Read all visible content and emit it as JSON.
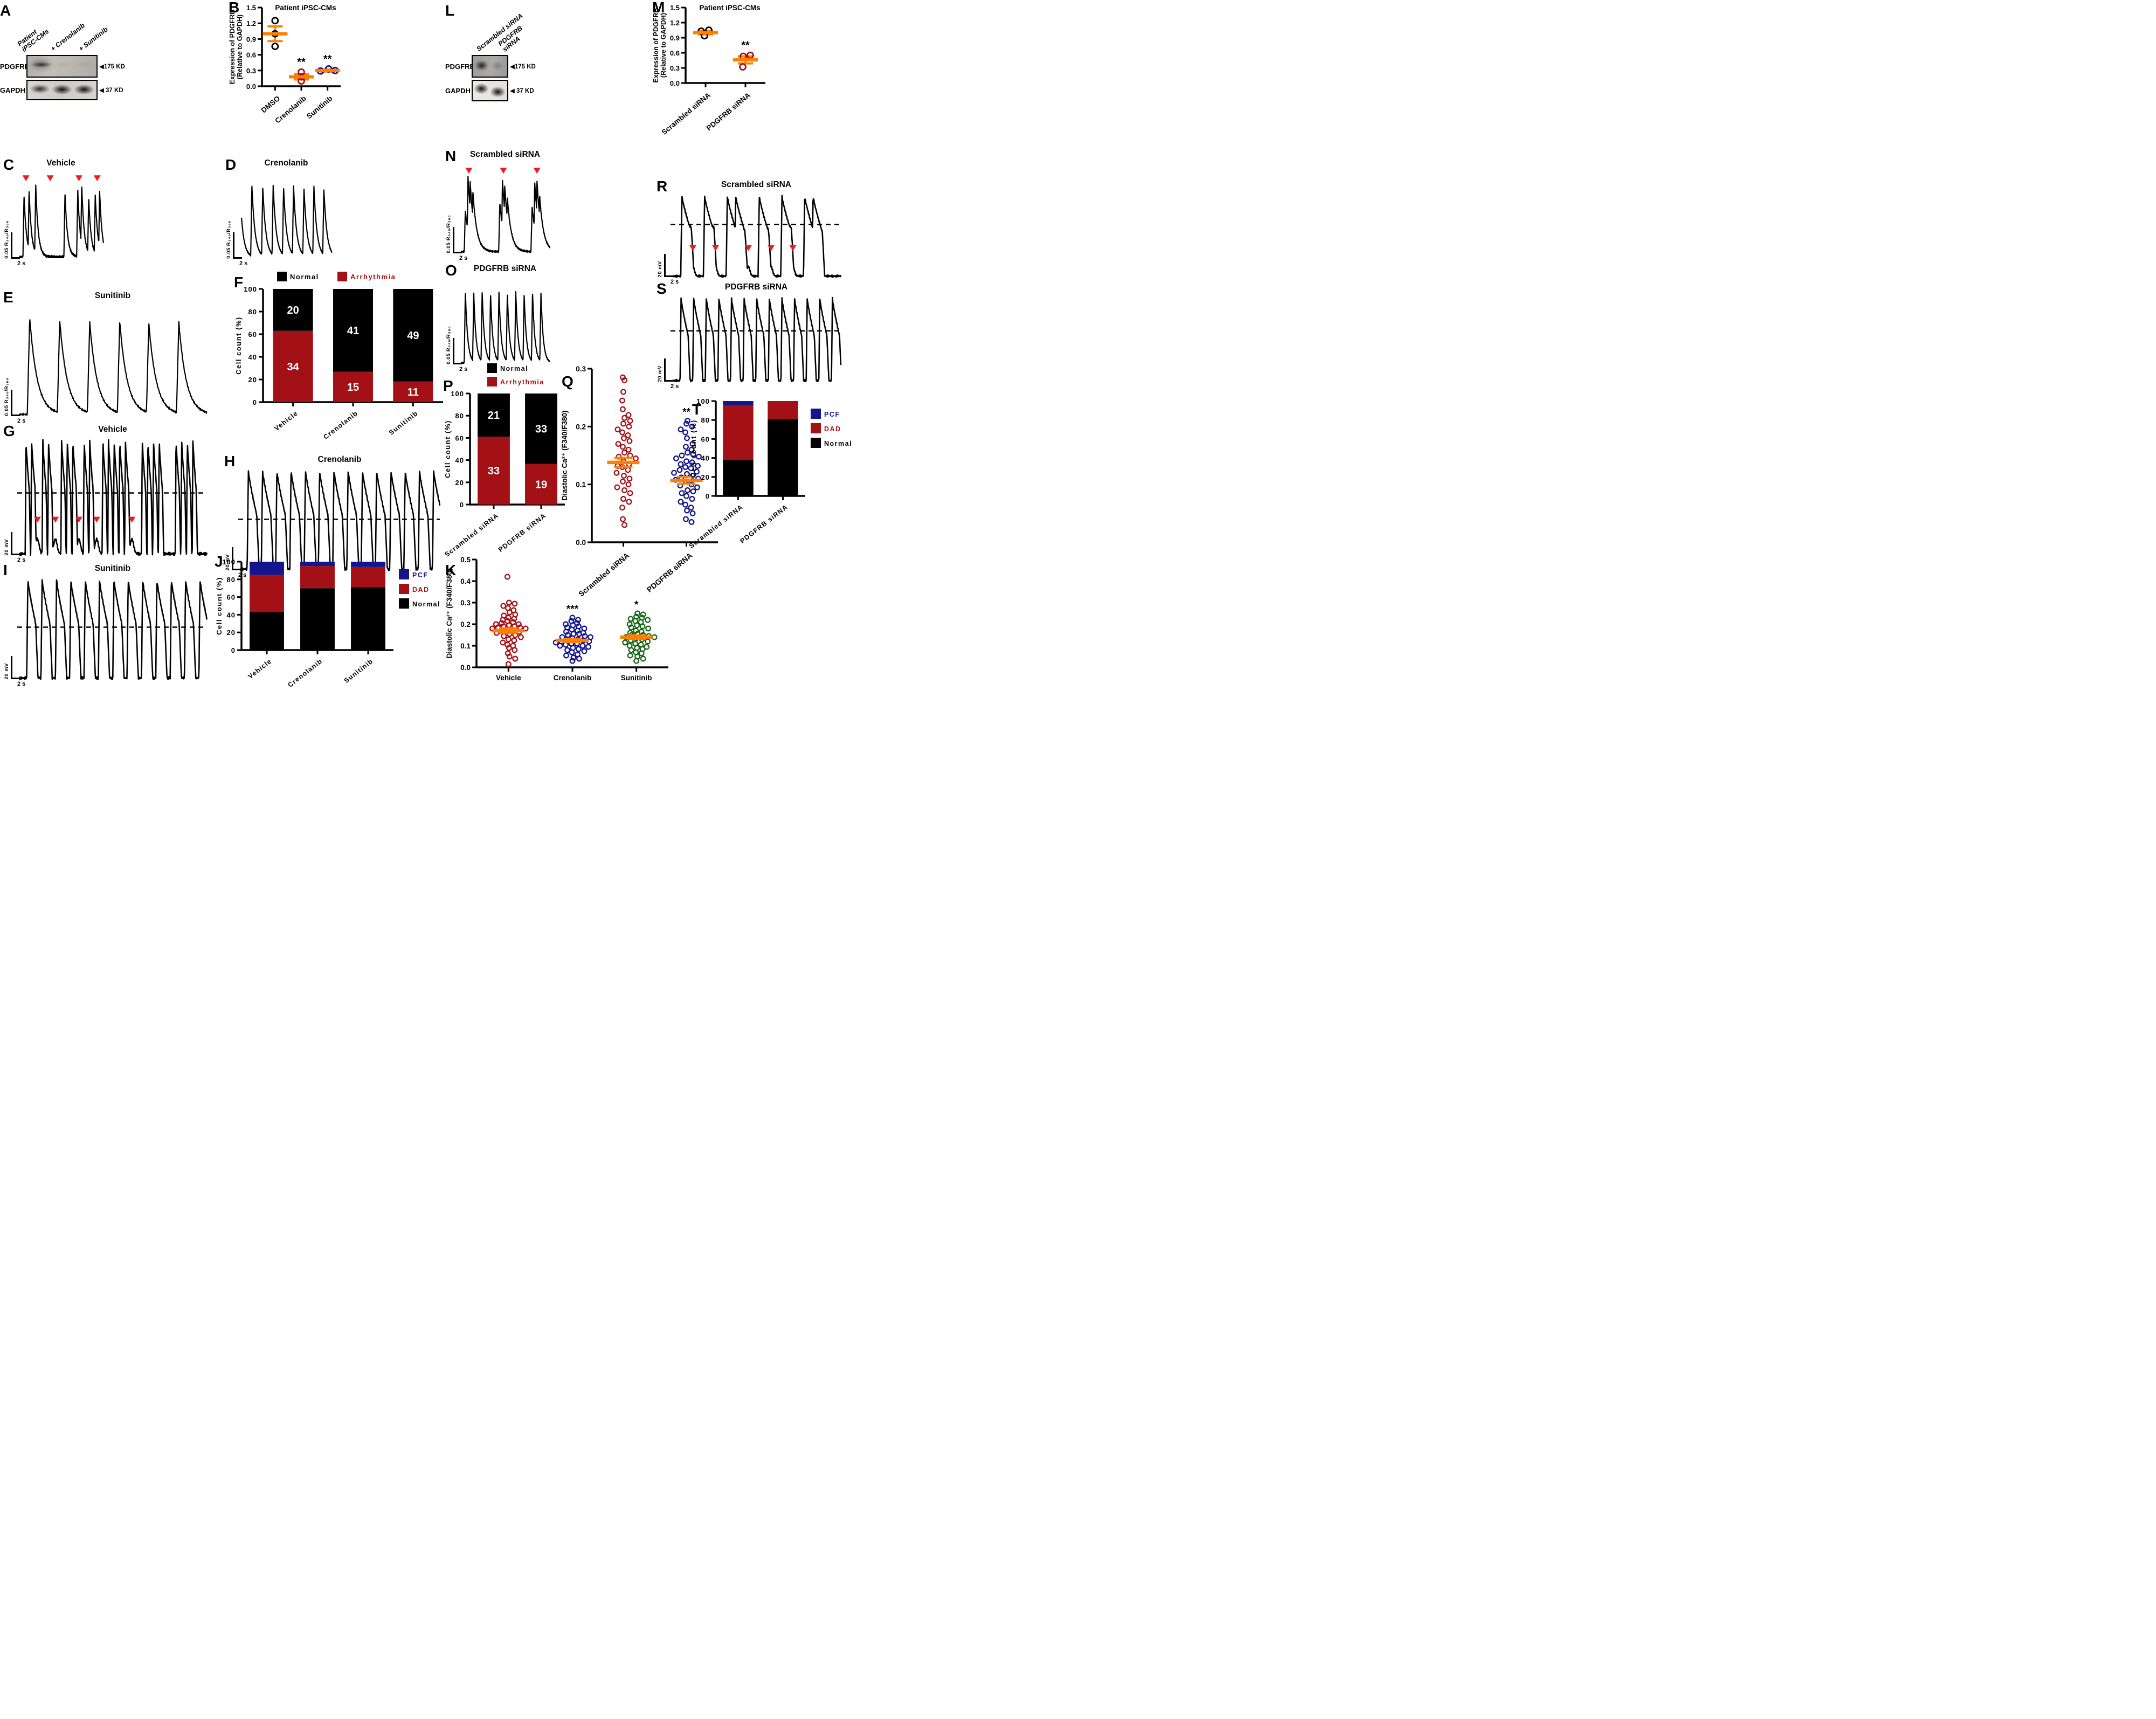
{
  "colors": {
    "accent_orange": "#FF7F00",
    "dark_red": "#A31116",
    "navy_blue": "#14148C",
    "dark_green": "#176617",
    "arrow_red": "#ED1C24",
    "black": "#000000",
    "white": "#FFFFFF"
  },
  "panels": {
    "a": {
      "label": "A",
      "lane1": "Patient\niPSC-CMs",
      "lane2": "+ Crenolanib",
      "lane3": "+ Sunitinib",
      "protein1": "PDGFRB",
      "protein2": "GAPDH",
      "marker1": "◀175 KD",
      "marker2": "◀ 37 KD"
    },
    "b": {
      "label": "B"
    },
    "c": {
      "label": "C",
      "title": "Vehicle",
      "yscale": "0.05 R₃₄₀/R₃₈₀",
      "xscale": "2 s"
    },
    "d": {
      "label": "D",
      "title": "Crenolanib",
      "yscale": "0.05 R₃₄₀/R₃₈₀",
      "xscale": "2 s"
    },
    "e": {
      "label": "E",
      "title": "Sunitinib",
      "yscale": "0.05 R₃₄₀/R₃₈₀",
      "xscale": "2 s"
    },
    "f": {
      "label": "F"
    },
    "g": {
      "label": "G",
      "title": "Vehicle",
      "yscale": "20 mV",
      "xscale": "2 s"
    },
    "h": {
      "label": "H",
      "title": "Crenolanib",
      "yscale": "20 mV",
      "xscale": "2 s"
    },
    "i": {
      "label": "I",
      "title": "Sunitinib",
      "yscale": "20 mV",
      "xscale": "2 s"
    },
    "j": {
      "label": "J"
    },
    "k": {
      "label": "K"
    },
    "l": {
      "label": "L",
      "lane1": "Scrambled siRNA",
      "lane2": "PDGFRB siRNA",
      "protein1": "PDGFRB",
      "protein2": "GAPDH",
      "marker1": "◀175 KD",
      "marker2": "◀ 37 KD"
    },
    "m": {
      "label": "M"
    },
    "n": {
      "label": "N",
      "title": "Scrambled siRNA",
      "yscale": "0.05 R₃₄₀/R₃₈₀",
      "xscale": "2 s"
    },
    "o": {
      "label": "O",
      "title": "PDGFRB siRNA",
      "yscale": "0.05 R₃₄₀/R₃₈₀",
      "xscale": "2 s"
    },
    "p": {
      "label": "P"
    },
    "q": {
      "label": "Q"
    },
    "r": {
      "label": "R",
      "title": "Scrambled siRNA",
      "yscale": "20 mV",
      "xscale": "2 s"
    },
    "s": {
      "label": "S",
      "title": "PDGFRB siRNA",
      "yscale": "20 mV",
      "xscale": "2 s"
    },
    "t": {
      "label": "T"
    }
  },
  "chart_data": [
    {
      "panel": "B",
      "type": "scatter",
      "title": "Patient iPSC-CMs",
      "ylabel": [
        "Expression of PDGFRB",
        "(Relative to GAPDH)"
      ],
      "ylim": [
        0,
        1.5
      ],
      "yticks": [
        0,
        0.3,
        0.6,
        0.9,
        1.2,
        1.5
      ],
      "ydec": 1,
      "mb": 80,
      "groups": [
        {
          "name": "DMSO",
          "color": "#000000",
          "values": [
            1.25,
            1.0,
            0.76
          ],
          "dx": [
            0,
            0,
            0
          ],
          "mean": 1.0,
          "sem": 0.14,
          "sig": ""
        },
        {
          "name": "Crenolanib",
          "color": "#A31116",
          "values": [
            0.27,
            0.18,
            0.1
          ],
          "dx": [
            0,
            0,
            0
          ],
          "mean": 0.18,
          "sem": 0.05,
          "sig": "**"
        },
        {
          "name": "Sunitinib",
          "color": "#14148C",
          "values": [
            0.29,
            0.33,
            0.3
          ],
          "dx": [
            -13,
            2,
            14
          ],
          "mean": 0.3,
          "sem": 0.02,
          "sig": "**"
        }
      ]
    },
    {
      "panel": "M",
      "type": "scatter",
      "title": "Patient iPSC-CMs",
      "ylabel": [
        "Expression of PDGFRB",
        "(Relative to GAPDH)"
      ],
      "ylim": [
        0,
        1.5
      ],
      "yticks": [
        0,
        0.3,
        0.6,
        0.9,
        1.2,
        1.5
      ],
      "ydec": 1,
      "mb": 92,
      "groups": [
        {
          "name": "Scrambled siRNA",
          "color": "#000000",
          "values": [
            1.03,
            1.05,
            0.94
          ],
          "dx": [
            -8,
            6,
            -2
          ],
          "mean": 1.0,
          "sem": 0.035,
          "sig": ""
        },
        {
          "name": "PDGFRB siRNA",
          "color": "#A31116",
          "values": [
            0.53,
            0.55,
            0.32
          ],
          "dx": [
            -4,
            9,
            -5
          ],
          "mean": 0.46,
          "sem": 0.07,
          "sig": "**"
        }
      ]
    },
    {
      "panel": "F",
      "type": "stack",
      "ylabel": "Cell count (%)",
      "ylim": [
        0,
        100
      ],
      "yticks": [
        0,
        20,
        40,
        60,
        80,
        100
      ],
      "legend_pos": "top",
      "counts_in_bar": true,
      "categories": [
        "Vehicle",
        "Crenolanib",
        "Sunitinib"
      ],
      "segments": [
        {
          "name": "Arrhythmia",
          "color": "#A31116",
          "counts": [
            34,
            15,
            11
          ]
        },
        {
          "name": "Normal",
          "color": "#000000",
          "counts": [
            20,
            41,
            49
          ]
        }
      ],
      "legend": [
        {
          "label": "Normal",
          "color": "#000000"
        },
        {
          "label": "Arrhythmia",
          "color": "#A31116"
        }
      ]
    },
    {
      "panel": "P",
      "type": "stack",
      "ylabel": "Cell count (%)",
      "ylim": [
        0,
        100
      ],
      "yticks": [
        0,
        20,
        40,
        60,
        80,
        100
      ],
      "legend_pos": "stack",
      "counts_in_bar": true,
      "categories": [
        "Scrambled siRNA",
        "PDGFRB siRNA"
      ],
      "segments": [
        {
          "name": "Arrhythmia",
          "color": "#A31116",
          "counts": [
            33,
            19
          ]
        },
        {
          "name": "Normal",
          "color": "#000000",
          "counts": [
            21,
            33
          ]
        }
      ],
      "legend": [
        {
          "label": "Normal",
          "color": "#000000"
        },
        {
          "label": "Arrhythmia",
          "color": "#A31116"
        }
      ]
    },
    {
      "panel": "J",
      "type": "stack",
      "pct": true,
      "ylabel": "Cell count (%)",
      "ylim": [
        0,
        100
      ],
      "yticks": [
        0,
        20,
        40,
        60,
        80,
        100
      ],
      "legend_pos": "right",
      "categories": [
        "Vehicle",
        "Crenolanib",
        "Sunitinib"
      ],
      "segments": [
        {
          "name": "Normal",
          "color": "#000000",
          "values": [
            43,
            70,
            71
          ]
        },
        {
          "name": "DAD",
          "color": "#A31116",
          "values": [
            42,
            25,
            23
          ]
        },
        {
          "name": "PCF",
          "color": "#14148C",
          "values": [
            15,
            5,
            6
          ]
        }
      ],
      "legend": [
        {
          "label": "PCF",
          "color": "#14148C"
        },
        {
          "label": "DAD",
          "color": "#A31116"
        },
        {
          "label": "Normal",
          "color": "#000000"
        }
      ]
    },
    {
      "panel": "T",
      "type": "stack",
      "pct": true,
      "ylabel": "Cell count (%)",
      "ylim": [
        0,
        100
      ],
      "yticks": [
        0,
        20,
        40,
        60,
        80,
        100
      ],
      "legend_pos": "right",
      "categories": [
        "Scrambled siRNA",
        "PDGFRB siRNA"
      ],
      "segments": [
        {
          "name": "Normal",
          "color": "#000000",
          "values": [
            38,
            81
          ]
        },
        {
          "name": "DAD",
          "color": "#A31116",
          "values": [
            57,
            19
          ]
        },
        {
          "name": "PCF",
          "color": "#14148C",
          "values": [
            5,
            0
          ]
        }
      ],
      "legend": [
        {
          "label": "PCF",
          "color": "#14148C"
        },
        {
          "label": "DAD",
          "color": "#A31116"
        },
        {
          "label": "Normal",
          "color": "#000000"
        }
      ]
    },
    {
      "panel": "K",
      "type": "dotcloud",
      "ylabel": "Diastolic Ca²⁺ (F340/F380)",
      "ylim": [
        0,
        0.5
      ],
      "yticks": [
        0,
        0.1,
        0.2,
        0.3,
        0.4,
        0.5
      ],
      "ydec": 1,
      "rotate_x": false,
      "groups": [
        {
          "name": "Vehicle",
          "color": "#A31116",
          "mean": 0.17,
          "sem": 0.012,
          "sig": "",
          "values": [
            0.42,
            0.3,
            0.295,
            0.285,
            0.275,
            0.265,
            0.255,
            0.245,
            0.24,
            0.23,
            0.225,
            0.22,
            0.215,
            0.21,
            0.205,
            0.2,
            0.2,
            0.195,
            0.19,
            0.19,
            0.185,
            0.185,
            0.18,
            0.18,
            0.175,
            0.17,
            0.17,
            0.165,
            0.16,
            0.155,
            0.15,
            0.145,
            0.14,
            0.13,
            0.125,
            0.115,
            0.105,
            0.1,
            0.09,
            0.08,
            0.065,
            0.05,
            0.04,
            0.015
          ]
        },
        {
          "name": "Crenolanib",
          "color": "#14148C",
          "mean": 0.125,
          "sem": 0.008,
          "sig": "***",
          "values": [
            0.23,
            0.22,
            0.215,
            0.205,
            0.2,
            0.195,
            0.19,
            0.185,
            0.18,
            0.175,
            0.17,
            0.165,
            0.16,
            0.155,
            0.155,
            0.15,
            0.145,
            0.14,
            0.14,
            0.135,
            0.13,
            0.13,
            0.125,
            0.12,
            0.12,
            0.115,
            0.11,
            0.11,
            0.105,
            0.1,
            0.1,
            0.095,
            0.09,
            0.085,
            0.08,
            0.075,
            0.07,
            0.06,
            0.055,
            0.045,
            0.04,
            0.03
          ]
        },
        {
          "name": "Sunitinib",
          "color": "#176617",
          "mean": 0.14,
          "sem": 0.009,
          "sig": "*",
          "values": [
            0.25,
            0.245,
            0.235,
            0.23,
            0.225,
            0.22,
            0.215,
            0.21,
            0.2,
            0.195,
            0.19,
            0.185,
            0.18,
            0.17,
            0.165,
            0.16,
            0.155,
            0.15,
            0.15,
            0.145,
            0.14,
            0.14,
            0.135,
            0.13,
            0.125,
            0.12,
            0.115,
            0.11,
            0.105,
            0.1,
            0.095,
            0.09,
            0.085,
            0.08,
            0.07,
            0.065,
            0.055,
            0.05,
            0.04,
            0.03
          ]
        }
      ]
    },
    {
      "panel": "Q",
      "type": "dotcloud",
      "ylabel": "Diastolic Ca²⁺ (F340/F380)",
      "ylim": [
        0,
        0.3
      ],
      "yticks": [
        0,
        0.1,
        0.2,
        0.3
      ],
      "ydec": 1,
      "rotate_x": true,
      "groups": [
        {
          "name": "Scrambled siRNA",
          "color": "#A31116",
          "mean": 0.138,
          "sem": 0.008,
          "sig": "",
          "values": [
            0.285,
            0.28,
            0.26,
            0.245,
            0.23,
            0.22,
            0.215,
            0.21,
            0.205,
            0.2,
            0.195,
            0.19,
            0.185,
            0.18,
            0.175,
            0.17,
            0.165,
            0.16,
            0.155,
            0.15,
            0.148,
            0.145,
            0.14,
            0.135,
            0.132,
            0.13,
            0.125,
            0.12,
            0.115,
            0.11,
            0.105,
            0.1,
            0.095,
            0.09,
            0.085,
            0.075,
            0.07,
            0.06,
            0.04,
            0.03
          ]
        },
        {
          "name": "PDGFRB siRNA",
          "color": "#14148C",
          "mean": 0.107,
          "sem": 0.006,
          "sig": "**",
          "values": [
            0.21,
            0.205,
            0.2,
            0.195,
            0.19,
            0.18,
            0.17,
            0.165,
            0.16,
            0.155,
            0.152,
            0.15,
            0.148,
            0.145,
            0.14,
            0.138,
            0.135,
            0.132,
            0.13,
            0.128,
            0.125,
            0.122,
            0.12,
            0.118,
            0.115,
            0.112,
            0.11,
            0.108,
            0.105,
            0.1,
            0.098,
            0.095,
            0.09,
            0.088,
            0.085,
            0.08,
            0.075,
            0.07,
            0.065,
            0.06,
            0.055,
            0.05,
            0.04,
            0.035
          ]
        }
      ]
    },
    {
      "panel": "C",
      "type": "trace",
      "kind": "calcium",
      "tau": 0.03,
      "noise": 0.02,
      "peaks": [
        [
          0.055,
          0.85
        ],
        [
          0.115,
          0.92
        ],
        [
          0.194,
          1.0
        ],
        [
          0.542,
          0.88
        ],
        [
          0.694,
          0.92
        ],
        [
          0.741,
          1.0
        ],
        [
          0.824,
          0.82
        ],
        [
          0.902,
          0.86
        ],
        [
          0.954,
          0.92
        ]
      ],
      "arrows": [
        0.078,
        0.366,
        0.708,
        0.925
      ],
      "arrow_v": 1.14
    },
    {
      "panel": "D",
      "type": "trace",
      "kind": "calcium",
      "tau": 0.034,
      "noise": 0.012,
      "peaks": [
        [
          -0.02,
          1.0
        ],
        [
          0.115,
          1.0
        ],
        [
          0.235,
          0.98
        ],
        [
          0.35,
          1.0
        ],
        [
          0.465,
          0.97
        ],
        [
          0.575,
          0.99
        ],
        [
          0.69,
          0.96
        ],
        [
          0.8,
          0.98
        ],
        [
          0.91,
          0.95
        ],
        [
          1.02,
          1.0
        ]
      ]
    },
    {
      "panel": "E",
      "type": "trace",
      "kind": "calcium",
      "tau": 0.04,
      "noise": 0.013,
      "peaks": [
        [
          0.055,
          1.0
        ],
        [
          0.215,
          0.97
        ],
        [
          0.375,
          0.95
        ],
        [
          0.535,
          0.96
        ],
        [
          0.69,
          0.94
        ],
        [
          0.85,
          0.95
        ]
      ]
    },
    {
      "panel": "N",
      "type": "trace",
      "kind": "calcium",
      "tau": 0.045,
      "noise": 0.014,
      "peaks": [
        [
          0.045,
          0.55
        ],
        [
          0.075,
          1.0
        ],
        [
          0.1,
          0.92
        ],
        [
          0.13,
          0.8
        ],
        [
          0.435,
          0.65
        ],
        [
          0.465,
          0.95
        ],
        [
          0.49,
          0.88
        ],
        [
          0.52,
          0.72
        ],
        [
          0.8,
          0.6
        ],
        [
          0.83,
          0.92
        ],
        [
          0.855,
          0.95
        ],
        [
          0.885,
          0.75
        ]
      ],
      "arrows": [
        0.085,
        0.475,
        0.855
      ],
      "arrow_v": 1.12
    },
    {
      "panel": "O",
      "type": "trace",
      "kind": "calcium",
      "tau": 0.026,
      "noise": 0.012,
      "peaks": [
        [
          0.045,
          1.0
        ],
        [
          0.14,
          0.97
        ],
        [
          0.235,
          1.0
        ],
        [
          0.33,
          0.96
        ],
        [
          0.425,
          0.99
        ],
        [
          0.52,
          0.97
        ],
        [
          0.615,
          1.0
        ],
        [
          0.71,
          0.96
        ],
        [
          0.805,
          0.98
        ],
        [
          0.9,
          0.97
        ]
      ]
    },
    {
      "panel": "G",
      "type": "trace",
      "kind": "ap",
      "rise": 0.004,
      "w1": 0.018,
      "w2": 0.006,
      "dashed_v": 0.55,
      "aps": [
        0.035,
        0.065,
        0.125,
        0.155,
        0.225,
        0.255,
        0.285,
        0.345,
        0.375,
        0.445,
        0.475,
        0.505,
        0.535,
        0.565,
        0.655,
        0.685,
        0.715,
        0.745,
        0.835,
        0.865,
        0.895,
        0.925
      ],
      "dads": [
        0.096,
        0.192,
        0.317,
        0.412,
        0.6
      ],
      "arrows": [
        0.096,
        0.192,
        0.317,
        0.412,
        0.6
      ],
      "arrow_v": 0.34
    },
    {
      "panel": "H",
      "type": "trace",
      "kind": "ap",
      "rise": 0.006,
      "w1": 0.042,
      "w2": 0.012,
      "dashed_v": 0.52,
      "aps": [
        0.04,
        0.111,
        0.183,
        0.254,
        0.326,
        0.397,
        0.469,
        0.54,
        0.612,
        0.683,
        0.755,
        0.826,
        0.898,
        0.969
      ]
    },
    {
      "panel": "I",
      "type": "trace",
      "kind": "ap",
      "rise": 0.006,
      "w1": 0.042,
      "w2": 0.012,
      "dashed_v": 0.53,
      "aps": [
        0.045,
        0.121,
        0.198,
        0.274,
        0.351,
        0.427,
        0.504,
        0.58,
        0.657,
        0.733,
        0.81,
        0.886,
        0.963
      ]
    },
    {
      "panel": "R",
      "type": "trace",
      "kind": "ap",
      "rise": 0.007,
      "w1": 0.055,
      "w2": 0.014,
      "dashed_v": 0.66,
      "dad_h": 0.12,
      "aps": [
        0.055,
        0.19,
        0.325,
        0.375,
        0.515,
        0.65,
        0.785,
        0.835
      ],
      "dads": [
        0.12,
        0.255,
        0.45,
        0.585,
        0.715
      ],
      "arrows": [
        0.12,
        0.255,
        0.45,
        0.585,
        0.715
      ],
      "arrow_v": 0.4
    },
    {
      "panel": "S",
      "type": "trace",
      "kind": "ap",
      "rise": 0.006,
      "w1": 0.042,
      "w2": 0.012,
      "dashed_v": 0.62,
      "aps": [
        0.05,
        0.125,
        0.2,
        0.275,
        0.35,
        0.425,
        0.5,
        0.575,
        0.65,
        0.725,
        0.8,
        0.875,
        0.95
      ]
    }
  ]
}
